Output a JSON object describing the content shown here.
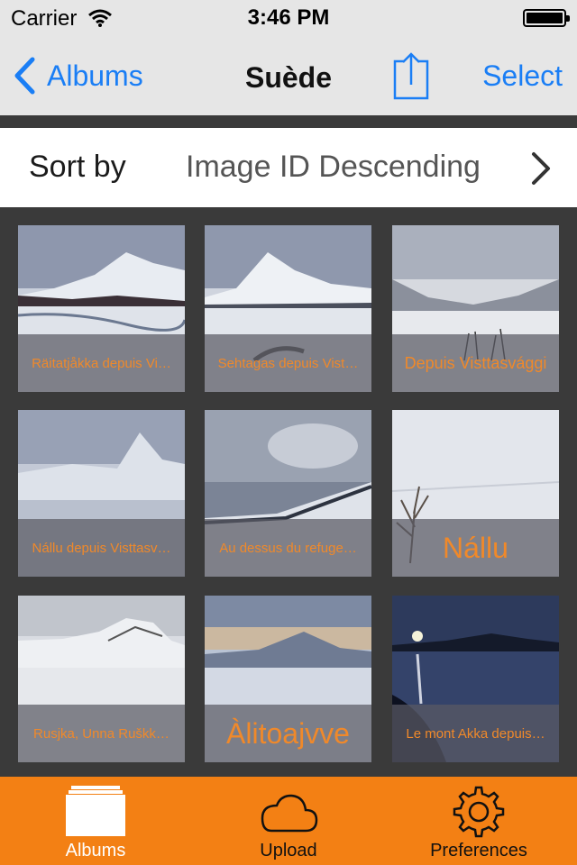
{
  "status": {
    "carrier": "Carrier",
    "time": "3:46 PM"
  },
  "nav": {
    "back_label": "Albums",
    "title": "Suède",
    "select_label": "Select",
    "accent": "#1a7ef5"
  },
  "sort": {
    "label": "Sort by",
    "value": "Image ID Descending"
  },
  "grid": {
    "caption_color": "#f0892a",
    "tiles": [
      {
        "caption": "Räitatjåkka depuis Vi…",
        "style": "normal",
        "scene": "snow-mountain-river"
      },
      {
        "caption": "Sehtagas depuis Vist…",
        "style": "normal",
        "scene": "snow-peak"
      },
      {
        "caption": "Depuis Visttasvággi",
        "style": "mid",
        "scene": "snow-valley-grass"
      },
      {
        "caption": "Nállu depuis Visttasv…",
        "style": "normal",
        "scene": "snow-valley-haze"
      },
      {
        "caption": "Au dessus du refuge…",
        "style": "normal",
        "scene": "cloudy-sky"
      },
      {
        "caption": "Nállu",
        "style": "big",
        "scene": "snow-tree"
      },
      {
        "caption": "Rusjka, Unna Ruškk…",
        "style": "normal",
        "scene": "snow-hill"
      },
      {
        "caption": "Àlitoajvve",
        "style": "big",
        "scene": "snow-plain-sunset"
      },
      {
        "caption": "Le mont Akka depuis…",
        "style": "normal",
        "scene": "night-lake"
      }
    ]
  },
  "tabbar": {
    "background": "#f38014",
    "tabs": [
      {
        "label": "Albums",
        "icon": "albums-icon",
        "active": true
      },
      {
        "label": "Upload",
        "icon": "cloud-icon",
        "active": false
      },
      {
        "label": "Preferences",
        "icon": "gear-icon",
        "active": false
      }
    ]
  }
}
